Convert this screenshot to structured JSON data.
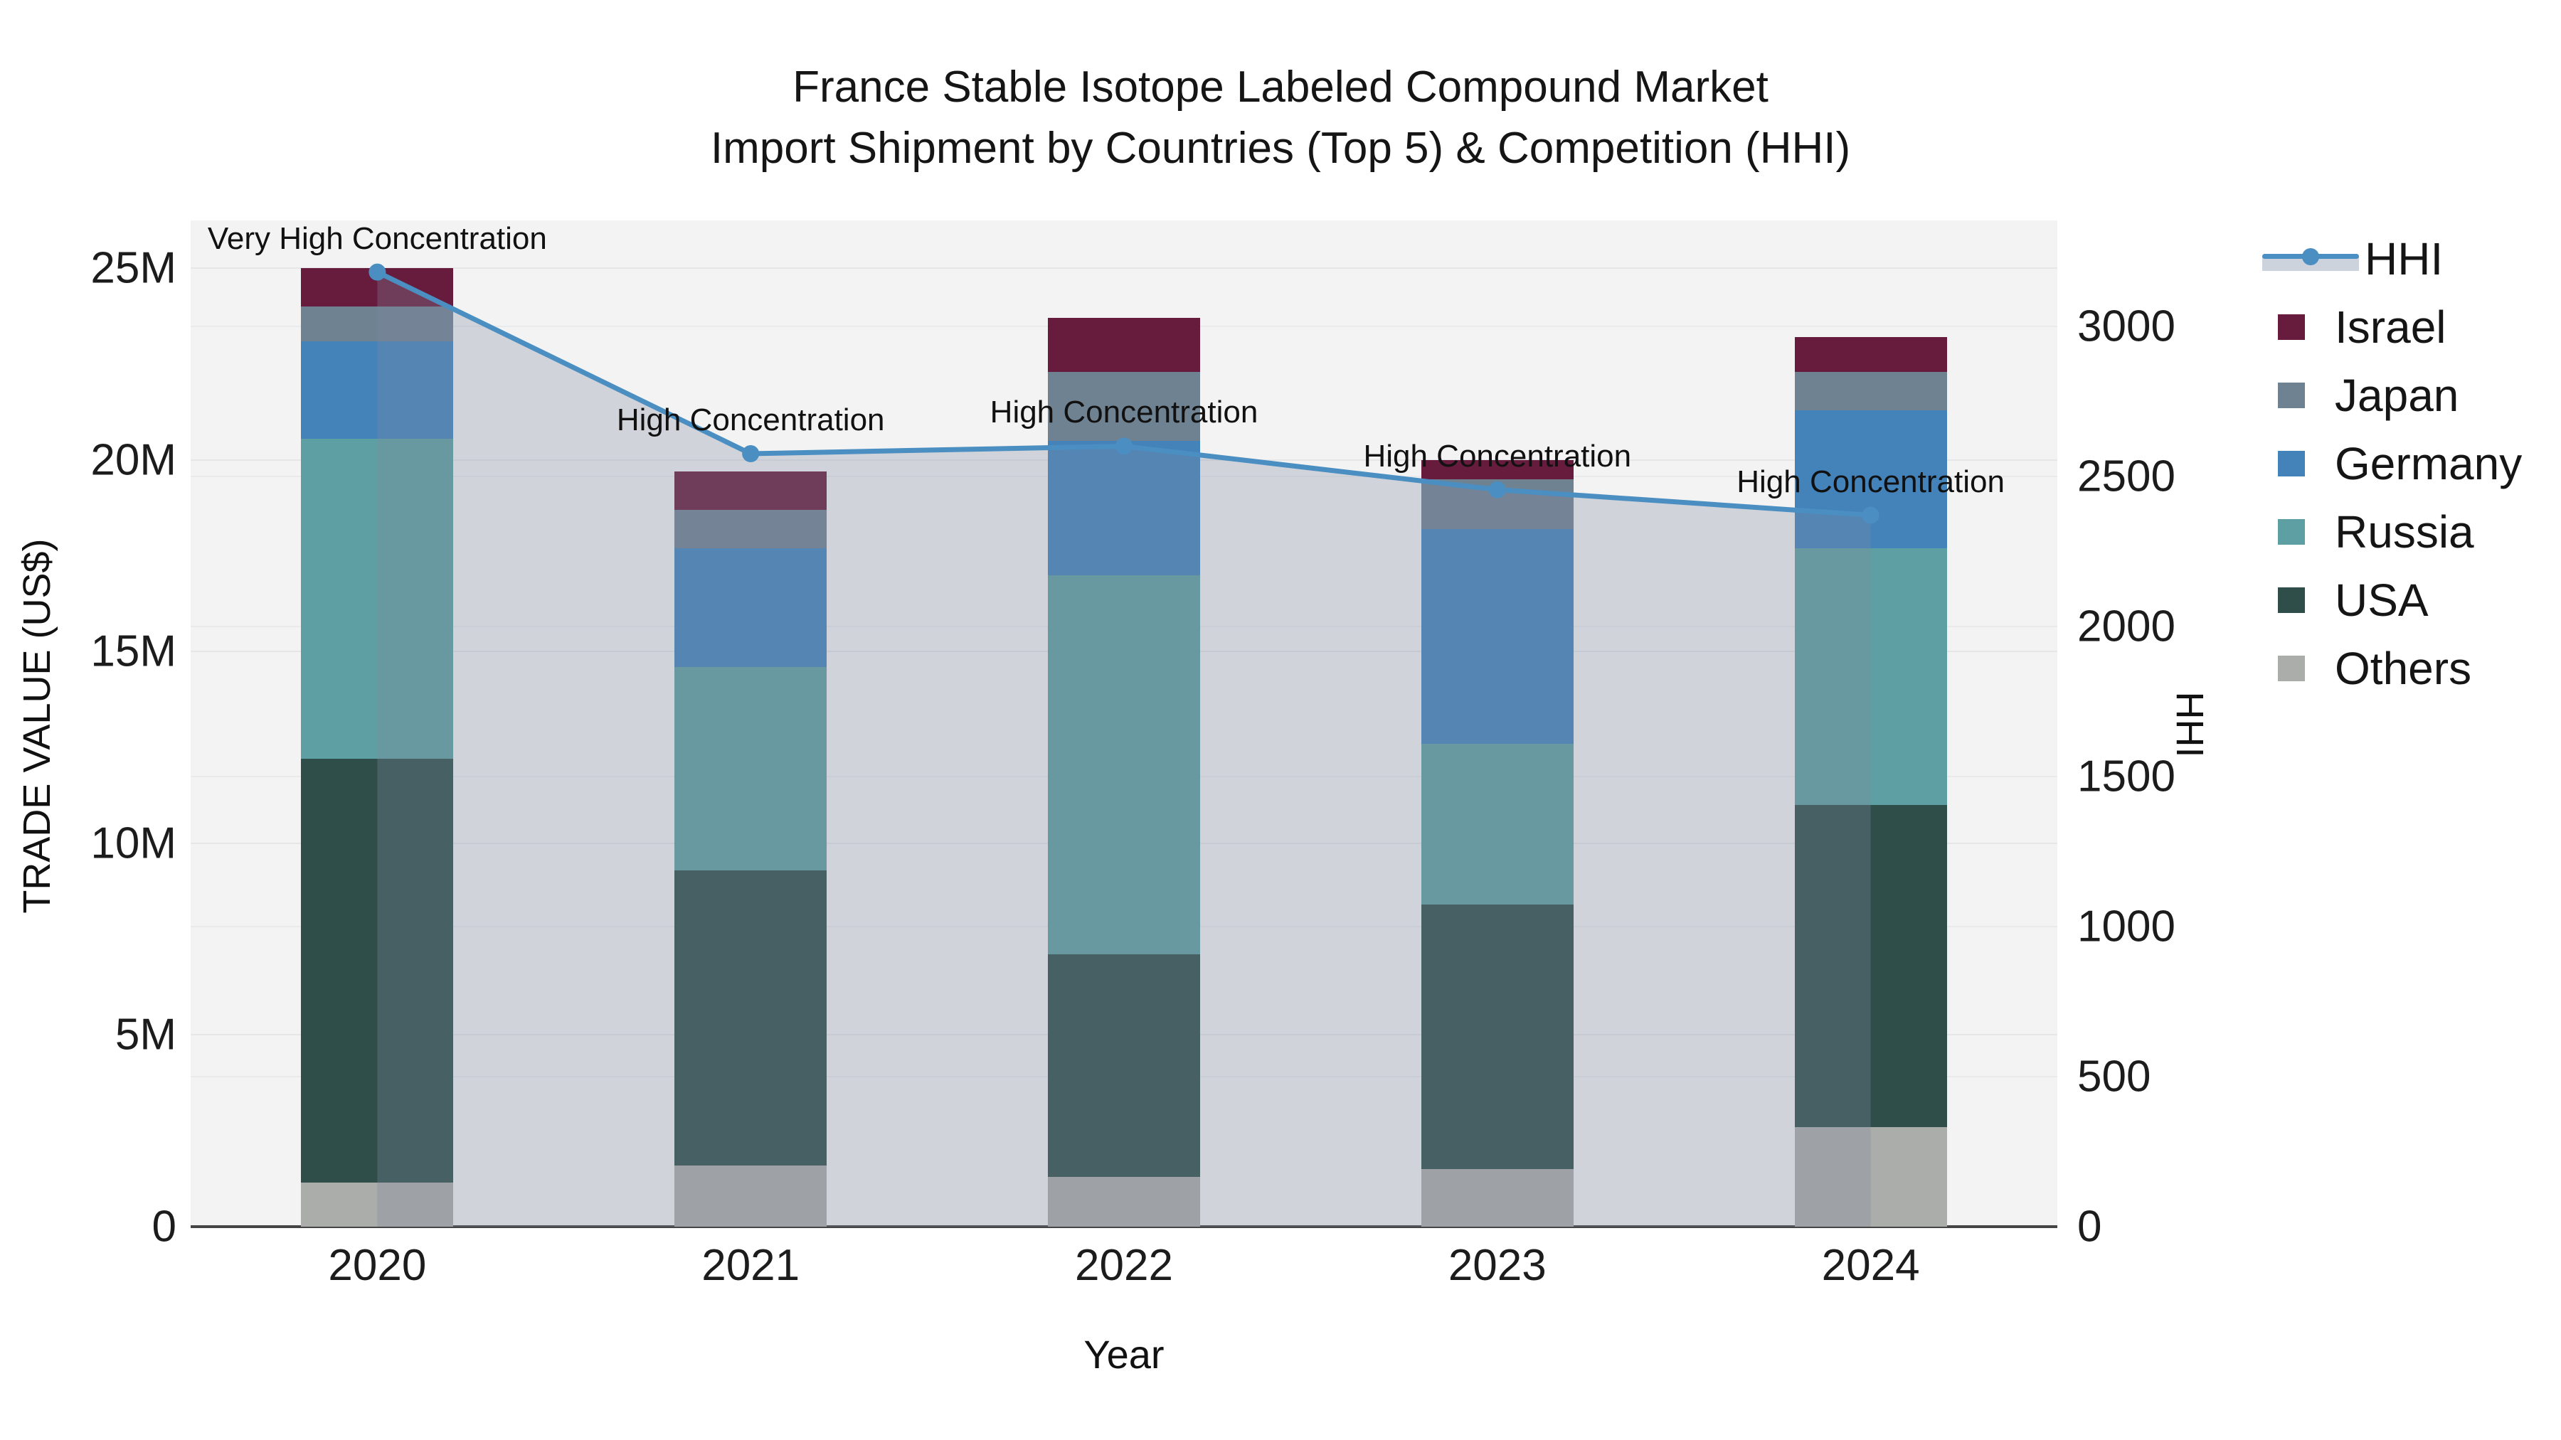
{
  "title": {
    "line1": "France Stable Isotope Labeled Compound Market",
    "line2": "Import Shipment by Countries (Top 5) & Competition (HHI)"
  },
  "x_axis": {
    "title": "Year",
    "categories": [
      "2020",
      "2021",
      "2022",
      "2023",
      "2024"
    ]
  },
  "y_left": {
    "title": "TRADE VALUE (US$)",
    "tick_labels": [
      "0",
      "5M",
      "10M",
      "15M",
      "20M",
      "25M"
    ],
    "tick_values": [
      0,
      5,
      10,
      15,
      20,
      25
    ],
    "max": 26.25
  },
  "y_right": {
    "title": "HHI",
    "tick_labels": [
      "0",
      "500",
      "1000",
      "1500",
      "2000",
      "2500",
      "3000"
    ],
    "tick_values": [
      0,
      500,
      1000,
      1500,
      2000,
      2500,
      3000
    ],
    "max": 3352
  },
  "legend": {
    "items": [
      {
        "label": "HHI",
        "kind": "line"
      },
      {
        "label": "Israel",
        "kind": "swatch"
      },
      {
        "label": "Japan",
        "kind": "swatch"
      },
      {
        "label": "Germany",
        "kind": "swatch"
      },
      {
        "label": "Russia",
        "kind": "swatch"
      },
      {
        "label": "USA",
        "kind": "swatch"
      },
      {
        "label": "Others",
        "kind": "swatch"
      }
    ]
  },
  "colors": {
    "Israel": "#671b3d",
    "Japan": "#6f8292",
    "Germany": "#4383ba",
    "Russia": "#5d9fa2",
    "USA": "#2f4e4a",
    "Others": "#abadab",
    "hhi_line": "#4a8ec2",
    "hhi_area": "rgba(128,140,158,0.30)",
    "plot_bg": "#f2f3f2",
    "grid_left": "#e4e6e8",
    "grid_right": "#e9eaec",
    "axis_line": "#454545"
  },
  "chart_data": {
    "type": "bar",
    "subtype": "stacked-bars-with-line-overlay",
    "title": "France Stable Isotope Labeled Compound Market — Import Shipment by Countries (Top 5) & Competition (HHI)",
    "xlabel": "Year",
    "ylabel_left": "TRADE VALUE (US$)",
    "ylabel_right": "HHI",
    "categories": [
      "2020",
      "2021",
      "2022",
      "2023",
      "2024"
    ],
    "value_unit": "million US$",
    "stack_order_bottom_to_top": [
      "Others",
      "USA",
      "Russia",
      "Germany",
      "Japan",
      "Israel"
    ],
    "series": [
      {
        "name": "Others",
        "values": [
          1.15,
          1.6,
          1.3,
          1.5,
          2.6
        ]
      },
      {
        "name": "USA",
        "values": [
          11.05,
          7.7,
          5.8,
          6.9,
          8.4
        ]
      },
      {
        "name": "Russia",
        "values": [
          8.35,
          5.3,
          9.9,
          4.2,
          6.7
        ]
      },
      {
        "name": "Germany",
        "values": [
          2.55,
          3.1,
          3.5,
          5.6,
          3.6
        ]
      },
      {
        "name": "Japan",
        "values": [
          0.9,
          1.0,
          1.8,
          1.3,
          1.0
        ]
      },
      {
        "name": "Israel",
        "values": [
          1.0,
          1.0,
          1.4,
          0.5,
          0.9
        ]
      }
    ],
    "stack_totals": [
      25.0,
      19.7,
      23.7,
      20.0,
      23.2
    ],
    "line_series": {
      "name": "HHI",
      "values": [
        3180,
        2575,
        2600,
        2455,
        2370
      ],
      "axis": "right"
    },
    "annotations": [
      {
        "x": "2020",
        "text": "Very High Concentration"
      },
      {
        "x": "2021",
        "text": "High Concentration"
      },
      {
        "x": "2022",
        "text": "High Concentration"
      },
      {
        "x": "2023",
        "text": "High Concentration"
      },
      {
        "x": "2024",
        "text": "High Concentration"
      }
    ],
    "ylim_left": [
      0,
      26.25
    ],
    "ylim_right": [
      0,
      3352
    ],
    "grid": true,
    "legend_position": "right"
  }
}
